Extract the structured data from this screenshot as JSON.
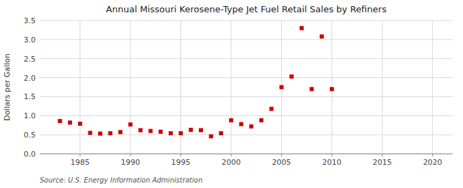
{
  "chart_data": {
    "type": "scatter",
    "title": "Annual Missouri Kerosene-Type Jet Fuel Retail Sales by Refiners",
    "ylabel": "Dollars per Gallon",
    "source": "Source: U.S. Energy Information Administration",
    "x": [
      1983,
      1984,
      1985,
      1986,
      1987,
      1988,
      1989,
      1990,
      1991,
      1992,
      1993,
      1994,
      1995,
      1996,
      1997,
      1998,
      1999,
      2000,
      2001,
      2002,
      2003,
      2004,
      2005,
      2006,
      2007,
      2008,
      2009,
      2010
    ],
    "values": [
      0.86,
      0.82,
      0.79,
      0.55,
      0.53,
      0.54,
      0.57,
      0.77,
      0.62,
      0.6,
      0.58,
      0.54,
      0.54,
      0.63,
      0.62,
      0.46,
      0.54,
      0.88,
      0.78,
      0.72,
      0.88,
      1.18,
      1.75,
      2.03,
      3.3,
      1.7,
      3.08,
      1.7
    ],
    "color": "#cc0000",
    "marker": "square",
    "xlim": [
      1981,
      2022
    ],
    "ylim": [
      0.0,
      3.5
    ],
    "xticks": [
      1985,
      1990,
      1995,
      2000,
      2005,
      2010,
      2015,
      2020
    ],
    "yticks": [
      {
        "value": 0.0,
        "label": "0.0"
      },
      0.5,
      {
        "value": 1.0,
        "label": "1.0"
      },
      1.5,
      {
        "value": 2.0,
        "label": "2.0"
      },
      2.5,
      {
        "value": 3.0,
        "label": "3.0"
      },
      3.5
    ],
    "grid": true
  }
}
